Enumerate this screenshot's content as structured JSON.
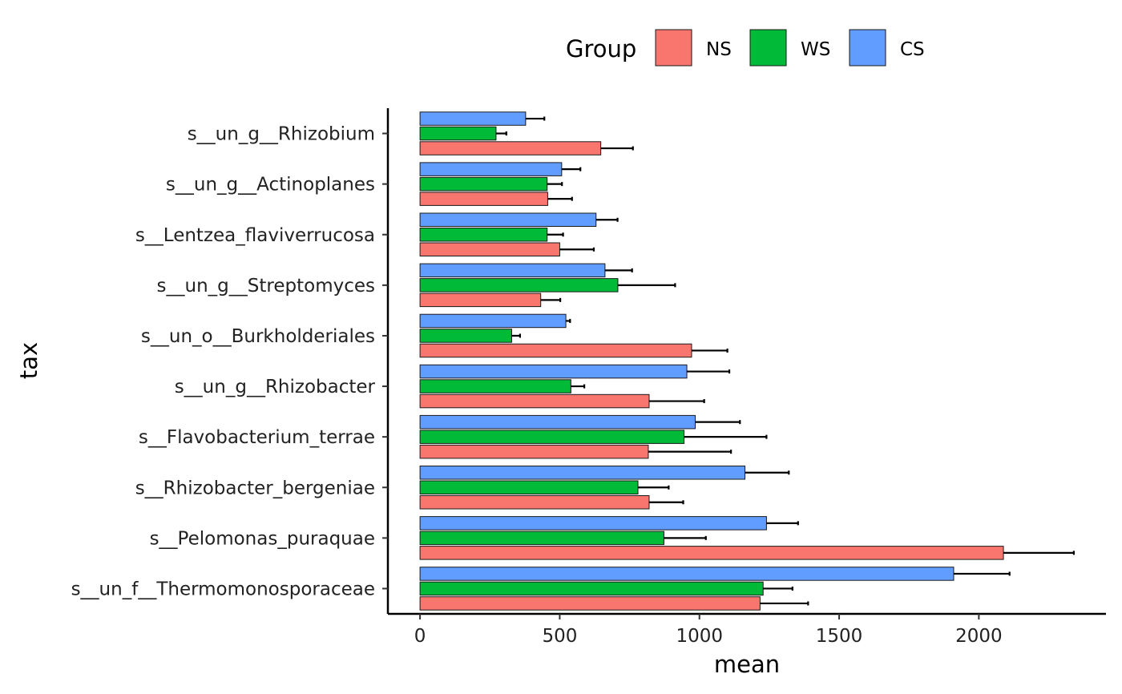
{
  "chart_data": {
    "type": "bar",
    "orientation": "horizontal",
    "xlabel": "mean",
    "ylabel": "tax",
    "xlim": [
      -115,
      2455
    ],
    "xticks": [
      0,
      500,
      1000,
      1500,
      2000
    ],
    "grid": false,
    "legend": {
      "title": "Group",
      "position": "top"
    },
    "categories": [
      "s__un_g__Rhizobium",
      "s__un_g__Actinoplanes",
      "s__Lentzea_flaviverrucosa",
      "s__un_g__Streptomyces",
      "s__un_o__Burkholderiales",
      "s__un_g__Rhizobacter",
      "s__Flavobacterium_terrae",
      "s__Rhizobacter_bergeniae",
      "s__Pelomonas_puraquae",
      "s__un_f__Thermomonosporaceae"
    ],
    "series": [
      {
        "name": "NS",
        "color": "#F8766D",
        "values": [
          647,
          457,
          500,
          432,
          972,
          820,
          817,
          820,
          2088,
          1217
        ],
        "errors": [
          115,
          87,
          122,
          70,
          128,
          197,
          296,
          122,
          252,
          172
        ]
      },
      {
        "name": "WS",
        "color": "#00BA38",
        "values": [
          272,
          455,
          455,
          708,
          328,
          540,
          945,
          780,
          873,
          1228
        ],
        "errors": [
          37,
          53,
          57,
          205,
          30,
          48,
          295,
          110,
          150,
          105
        ]
      },
      {
        "name": "CS",
        "color": "#619CFF",
        "values": [
          378,
          507,
          630,
          662,
          522,
          955,
          985,
          1163,
          1240,
          1910
        ],
        "errors": [
          67,
          67,
          77,
          97,
          15,
          152,
          160,
          157,
          113,
          200
        ]
      }
    ]
  }
}
